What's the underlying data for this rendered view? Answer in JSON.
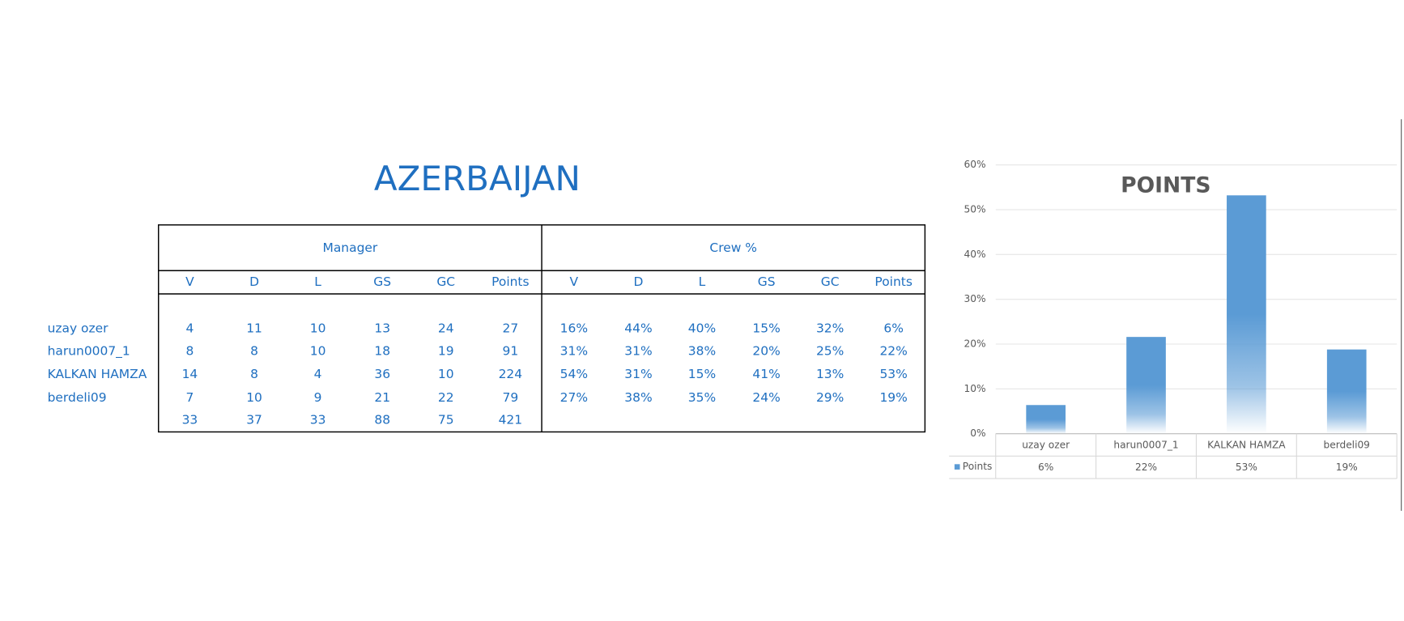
{
  "title": "AZERBAIJAN",
  "table": {
    "groups": [
      "Manager",
      "Crew %"
    ],
    "columns": [
      "V",
      "D",
      "L",
      "GS",
      "GC",
      "Points",
      "V",
      "D",
      "L",
      "GS",
      "GC",
      "Points"
    ],
    "rows": [
      {
        "name": "uzay ozer",
        "values": [
          4,
          11,
          10,
          13,
          24,
          27,
          "16%",
          "44%",
          "40%",
          "15%",
          "32%",
          "6%"
        ]
      },
      {
        "name": "harun0007_1",
        "values": [
          8,
          8,
          10,
          18,
          19,
          91,
          "31%",
          "31%",
          "38%",
          "20%",
          "25%",
          "22%"
        ]
      },
      {
        "name": "KALKAN HAMZA",
        "values": [
          14,
          8,
          4,
          36,
          10,
          224,
          "54%",
          "31%",
          "15%",
          "41%",
          "13%",
          "53%"
        ]
      },
      {
        "name": "berdeli09",
        "values": [
          7,
          10,
          9,
          21,
          22,
          79,
          "27%",
          "38%",
          "35%",
          "24%",
          "29%",
          "19%"
        ]
      }
    ],
    "totals": [
      33,
      37,
      33,
      88,
      75,
      421
    ]
  },
  "chart_data": {
    "type": "bar",
    "title": "POINTS",
    "categories": [
      "uzay ozer",
      "harun0007_1",
      "KALKAN HAMZA",
      "berdeli09"
    ],
    "series": [
      {
        "name": "Points",
        "color": "#5b9bd5",
        "values": [
          6.4,
          21.6,
          53.2,
          18.8
        ],
        "value_labels": [
          "6%",
          "22%",
          "53%",
          "19%"
        ]
      }
    ],
    "ylim": [
      0,
      60
    ],
    "yticks": [
      {
        "value": 0,
        "label": "0%"
      },
      {
        "value": 10,
        "label": "10%"
      },
      {
        "value": 20,
        "label": "20%"
      },
      {
        "value": 30,
        "label": "30%"
      },
      {
        "value": 40,
        "label": "40%"
      },
      {
        "value": 50,
        "label": "50%"
      },
      {
        "value": 60,
        "label": "60%"
      }
    ],
    "grid": true
  }
}
